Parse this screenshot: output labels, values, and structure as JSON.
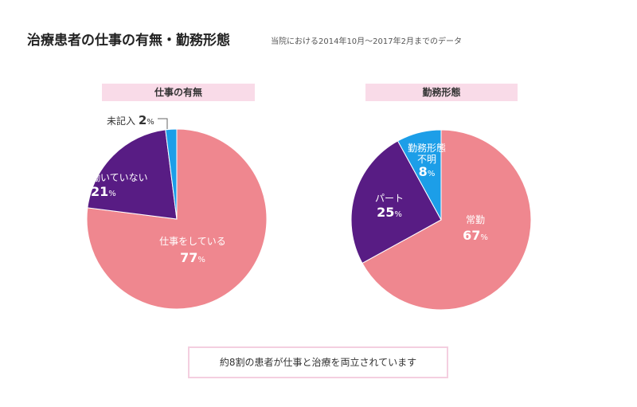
{
  "header": {
    "title": "治療患者の仕事の有無・勤務形態",
    "note": "当院における2014年10月～2017年2月までのデータ"
  },
  "colors": {
    "pink": "#ef878f",
    "purple": "#581c84",
    "blue": "#1c9ee8",
    "label_bg": "#f9dbe8",
    "box_border": "#f4cfe0"
  },
  "chart_data": [
    {
      "type": "pie",
      "title": "仕事の有無",
      "slices": [
        {
          "label": "仕事をしている",
          "value": 77,
          "value_text": "77",
          "unit": "%",
          "color": "#ef878f"
        },
        {
          "label": "働いていない",
          "value": 21,
          "value_text": "21",
          "unit": "%",
          "color": "#581c84"
        },
        {
          "label": "未記入",
          "value": 2,
          "value_text": "2",
          "unit": "%",
          "color": "#1c9ee8"
        }
      ]
    },
    {
      "type": "pie",
      "title": "勤務形態",
      "slices": [
        {
          "label": "常勤",
          "value": 67,
          "value_text": "67",
          "unit": "%",
          "color": "#ef878f"
        },
        {
          "label": "パート",
          "value": 25,
          "value_text": "25",
          "unit": "%",
          "color": "#581c84"
        },
        {
          "label": "勤務形態\n不明",
          "value": 8,
          "value_text": "8",
          "unit": "%",
          "color": "#1c9ee8"
        }
      ]
    }
  ],
  "summary": "約8割の患者が仕事と治療を両立されています"
}
